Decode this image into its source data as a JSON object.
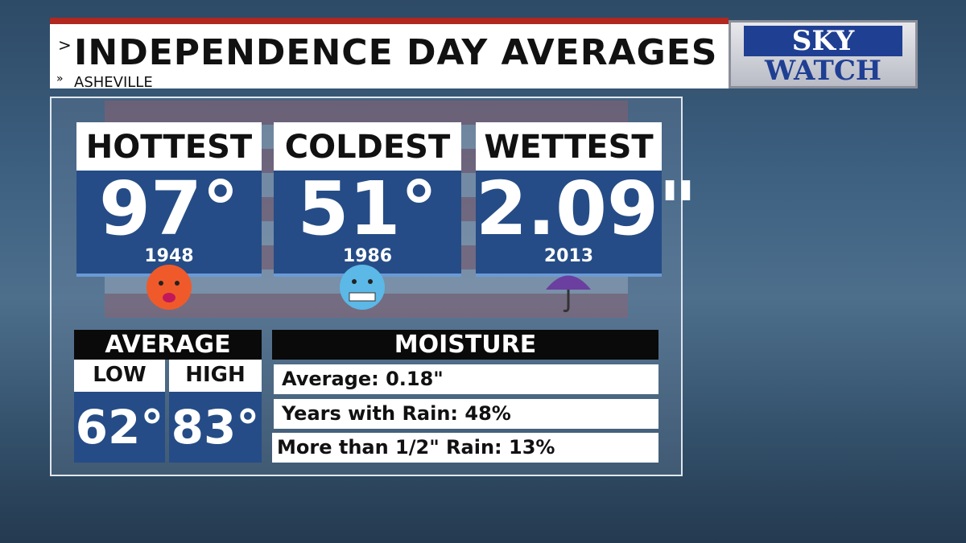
{
  "header": {
    "title": "INDEPENDENCE DAY AVERAGES",
    "subtitle": "ASHEVILLE"
  },
  "logo": {
    "line1": "SKY",
    "line2": "WATCH"
  },
  "records": [
    {
      "label": "HOTTEST",
      "value": "97°",
      "year": "1948"
    },
    {
      "label": "COLDEST",
      "value": "51°",
      "year": "1986"
    },
    {
      "label": "WETTEST",
      "value": "2.09\"",
      "year": "2013"
    }
  ],
  "average": {
    "title": "AVERAGE",
    "low_label": "LOW",
    "high_label": "HIGH",
    "low": "62°",
    "high": "83°"
  },
  "moisture": {
    "title": "MOISTURE",
    "rows": [
      "Average: 0.18\"",
      "Years with Rain: 48%",
      "More than 1/2\" Rain: 13%"
    ]
  }
}
